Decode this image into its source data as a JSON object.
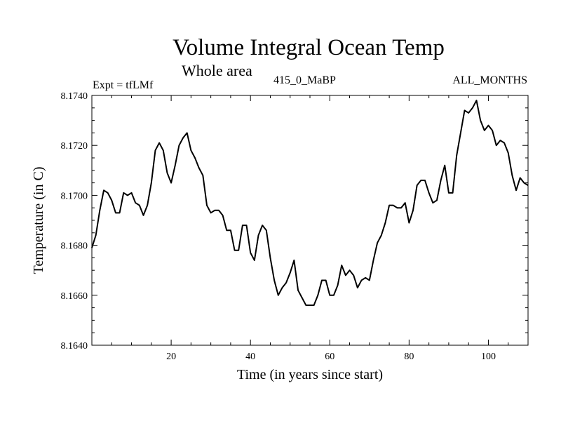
{
  "header": {
    "title": "Volume Integral Ocean Temp",
    "subtitle": "Whole area",
    "expt_label": "Expt = tfLMf",
    "run_label": "415_0_MaBP",
    "months_label": "ALL_MONTHS"
  },
  "chart_data": {
    "type": "line",
    "title": "Volume Integral Ocean Temp",
    "subtitle": "Whole area",
    "xlabel": "Time (in years since start)",
    "ylabel": "Temperature (in C)",
    "xlim": [
      0,
      110
    ],
    "ylim": [
      8.164,
      8.174
    ],
    "xticks": [
      20,
      40,
      60,
      80,
      100
    ],
    "yticks": [
      8.164,
      8.166,
      8.168,
      8.17,
      8.172,
      8.174
    ],
    "ytick_labels": [
      "8.1640",
      "8.1660",
      "8.1680",
      "8.1700",
      "8.1720",
      "8.1740"
    ],
    "xtick_labels": [
      "20",
      "40",
      "60",
      "80",
      "100"
    ],
    "grid": false,
    "legend": "none",
    "series": [
      {
        "name": "Volume Integral Ocean Temp",
        "x": [
          0,
          1,
          2,
          3,
          4,
          5,
          6,
          7,
          8,
          9,
          10,
          11,
          12,
          13,
          14,
          15,
          16,
          17,
          18,
          19,
          20,
          21,
          22,
          23,
          24,
          25,
          26,
          27,
          28,
          29,
          30,
          31,
          32,
          33,
          34,
          35,
          36,
          37,
          38,
          39,
          40,
          41,
          42,
          43,
          44,
          45,
          46,
          47,
          48,
          49,
          50,
          51,
          52,
          53,
          54,
          55,
          56,
          57,
          58,
          59,
          60,
          61,
          62,
          63,
          64,
          65,
          66,
          67,
          68,
          69,
          70,
          71,
          72,
          73,
          74,
          75,
          76,
          77,
          78,
          79,
          80,
          81,
          82,
          83,
          84,
          85,
          86,
          87,
          88,
          89,
          90,
          91,
          92,
          93,
          94,
          95,
          96,
          97,
          98,
          99,
          100,
          101,
          102,
          103,
          104,
          105,
          106,
          107,
          108,
          109,
          110
        ],
        "values": [
          8.1679,
          8.1684,
          8.1694,
          8.1702,
          8.1701,
          8.1698,
          8.1693,
          8.1693,
          8.1701,
          8.17,
          8.1701,
          8.1697,
          8.1696,
          8.1692,
          8.1696,
          8.1705,
          8.1718,
          8.1721,
          8.1718,
          8.1709,
          8.1705,
          8.1712,
          8.172,
          8.1723,
          8.1725,
          8.1718,
          8.1715,
          8.1711,
          8.1708,
          8.1696,
          8.1693,
          8.1694,
          8.1694,
          8.1692,
          8.1686,
          8.1686,
          8.1678,
          8.1678,
          8.1688,
          8.1688,
          8.1677,
          8.1674,
          8.1684,
          8.1688,
          8.1686,
          8.1675,
          8.1666,
          8.166,
          8.1663,
          8.1665,
          8.1669,
          8.1674,
          8.1662,
          8.1659,
          8.1656,
          8.1656,
          8.1656,
          8.166,
          8.1666,
          8.1666,
          8.166,
          8.166,
          8.1664,
          8.1672,
          8.1668,
          8.167,
          8.1668,
          8.1663,
          8.1666,
          8.1667,
          8.1666,
          8.1674,
          8.1681,
          8.1684,
          8.1689,
          8.1696,
          8.1696,
          8.1695,
          8.1695,
          8.1697,
          8.1689,
          8.1694,
          8.1704,
          8.1706,
          8.1706,
          8.1701,
          8.1697,
          8.1698,
          8.1706,
          8.1712,
          8.1701,
          8.1701,
          8.1716,
          8.1725,
          8.1734,
          8.1733,
          8.1735,
          8.1738,
          8.173,
          8.1726,
          8.1728,
          8.1726,
          8.172,
          8.1722,
          8.1721,
          8.1717,
          8.1708,
          8.1702,
          8.1707,
          8.1705,
          8.1704
        ]
      }
    ]
  }
}
